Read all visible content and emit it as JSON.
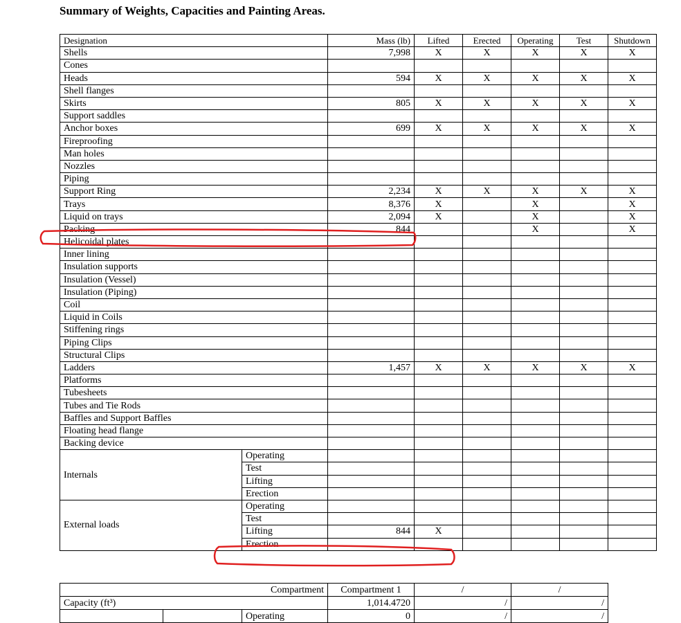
{
  "title": "Summary of Weights, Capacities and Painting Areas.",
  "headers": [
    "Designation",
    "Mass (lb)",
    "Lifted",
    "Erected",
    "Operating",
    "Test",
    "Shutdown"
  ],
  "rows": [
    {
      "name": "Shells",
      "mass": "7,998",
      "marks": [
        "X",
        "X",
        "X",
        "X",
        "X"
      ]
    },
    {
      "name": "Cones",
      "mass": "",
      "marks": [
        "",
        "",
        "",
        "",
        ""
      ]
    },
    {
      "name": "Heads",
      "mass": "594",
      "marks": [
        "X",
        "X",
        "X",
        "X",
        "X"
      ]
    },
    {
      "name": "Shell flanges",
      "mass": "",
      "marks": [
        "",
        "",
        "",
        "",
        ""
      ]
    },
    {
      "name": "Skirts",
      "mass": "805",
      "marks": [
        "X",
        "X",
        "X",
        "X",
        "X"
      ]
    },
    {
      "name": "Support saddles",
      "mass": "",
      "marks": [
        "",
        "",
        "",
        "",
        ""
      ]
    },
    {
      "name": "Anchor boxes",
      "mass": "699",
      "marks": [
        "X",
        "X",
        "X",
        "X",
        "X"
      ]
    },
    {
      "name": "Fireproofing",
      "mass": "",
      "marks": [
        "",
        "",
        "",
        "",
        ""
      ]
    },
    {
      "name": "Man holes",
      "mass": "",
      "marks": [
        "",
        "",
        "",
        "",
        ""
      ]
    },
    {
      "name": "Nozzles",
      "mass": "",
      "marks": [
        "",
        "",
        "",
        "",
        ""
      ]
    },
    {
      "name": "Piping",
      "mass": "",
      "marks": [
        "",
        "",
        "",
        "",
        ""
      ]
    },
    {
      "name": "Support Ring",
      "mass": "2,234",
      "marks": [
        "X",
        "X",
        "X",
        "X",
        "X"
      ]
    },
    {
      "name": "Trays",
      "mass": "8,376",
      "marks": [
        "X",
        "",
        "X",
        "",
        "X"
      ]
    },
    {
      "name": "Liquid on trays",
      "mass": "2,094",
      "marks": [
        "X",
        "",
        "X",
        "",
        "X"
      ]
    },
    {
      "name": "Packing",
      "mass": "844",
      "marks": [
        "",
        "",
        "X",
        "",
        "X"
      ]
    },
    {
      "name": "Helicoidal plates",
      "mass": "",
      "marks": [
        "",
        "",
        "",
        "",
        ""
      ]
    },
    {
      "name": "Inner lining",
      "mass": "",
      "marks": [
        "",
        "",
        "",
        "",
        ""
      ]
    },
    {
      "name": "Insulation supports",
      "mass": "",
      "marks": [
        "",
        "",
        "",
        "",
        ""
      ]
    },
    {
      "name": "Insulation (Vessel)",
      "mass": "",
      "marks": [
        "",
        "",
        "",
        "",
        ""
      ]
    },
    {
      "name": "Insulation (Piping)",
      "mass": "",
      "marks": [
        "",
        "",
        "",
        "",
        ""
      ]
    },
    {
      "name": "Coil",
      "mass": "",
      "marks": [
        "",
        "",
        "",
        "",
        ""
      ]
    },
    {
      "name": "Liquid in Coils",
      "mass": "",
      "marks": [
        "",
        "",
        "",
        "",
        ""
      ]
    },
    {
      "name": "Stiffening rings",
      "mass": "",
      "marks": [
        "",
        "",
        "",
        "",
        ""
      ]
    },
    {
      "name": "Piping Clips",
      "mass": "",
      "marks": [
        "",
        "",
        "",
        "",
        ""
      ]
    },
    {
      "name": "Structural Clips",
      "mass": "",
      "marks": [
        "",
        "",
        "",
        "",
        ""
      ]
    },
    {
      "name": "Ladders",
      "mass": "1,457",
      "marks": [
        "X",
        "X",
        "X",
        "X",
        "X"
      ]
    },
    {
      "name": "Platforms",
      "mass": "",
      "marks": [
        "",
        "",
        "",
        "",
        ""
      ]
    },
    {
      "name": "Tubesheets",
      "mass": "",
      "marks": [
        "",
        "",
        "",
        "",
        ""
      ]
    },
    {
      "name": "Tubes and Tie Rods",
      "mass": "",
      "marks": [
        "",
        "",
        "",
        "",
        ""
      ]
    },
    {
      "name": "Baffles and Support Baffles",
      "mass": "",
      "marks": [
        "",
        "",
        "",
        "",
        ""
      ]
    },
    {
      "name": "Floating head flange",
      "mass": "",
      "marks": [
        "",
        "",
        "",
        "",
        ""
      ]
    },
    {
      "name": "Backing device",
      "mass": "",
      "marks": [
        "",
        "",
        "",
        "",
        ""
      ]
    }
  ],
  "groups": [
    {
      "name": "Internals",
      "sub": [
        {
          "name": "Operating",
          "mass": "",
          "marks": [
            "",
            "",
            "",
            "",
            ""
          ]
        },
        {
          "name": "Test",
          "mass": "",
          "marks": [
            "",
            "",
            "",
            "",
            ""
          ]
        },
        {
          "name": "Lifting",
          "mass": "",
          "marks": [
            "",
            "",
            "",
            "",
            ""
          ]
        },
        {
          "name": "Erection",
          "mass": "",
          "marks": [
            "",
            "",
            "",
            "",
            ""
          ]
        }
      ]
    },
    {
      "name": "External loads",
      "sub": [
        {
          "name": "Operating",
          "mass": "",
          "marks": [
            "",
            "",
            "",
            "",
            ""
          ]
        },
        {
          "name": "Test",
          "mass": "",
          "marks": [
            "",
            "",
            "",
            "",
            ""
          ]
        },
        {
          "name": "Lifting",
          "mass": "844",
          "marks": [
            "X",
            "",
            "",
            "",
            ""
          ]
        },
        {
          "name": "Erection",
          "mass": "",
          "marks": [
            "",
            "",
            "",
            "",
            ""
          ]
        }
      ]
    }
  ],
  "capacity": {
    "compartment_label": "Compartment",
    "compartments": [
      "Compartment 1",
      "/",
      "/"
    ],
    "capacity_label": "Capacity (ft³)",
    "capacity_values": [
      "1,014.4720",
      "/",
      "/"
    ],
    "next_row_label": "Operating",
    "next_row_values": [
      "0",
      "/",
      "/"
    ]
  },
  "annotation_color": "#e02020"
}
